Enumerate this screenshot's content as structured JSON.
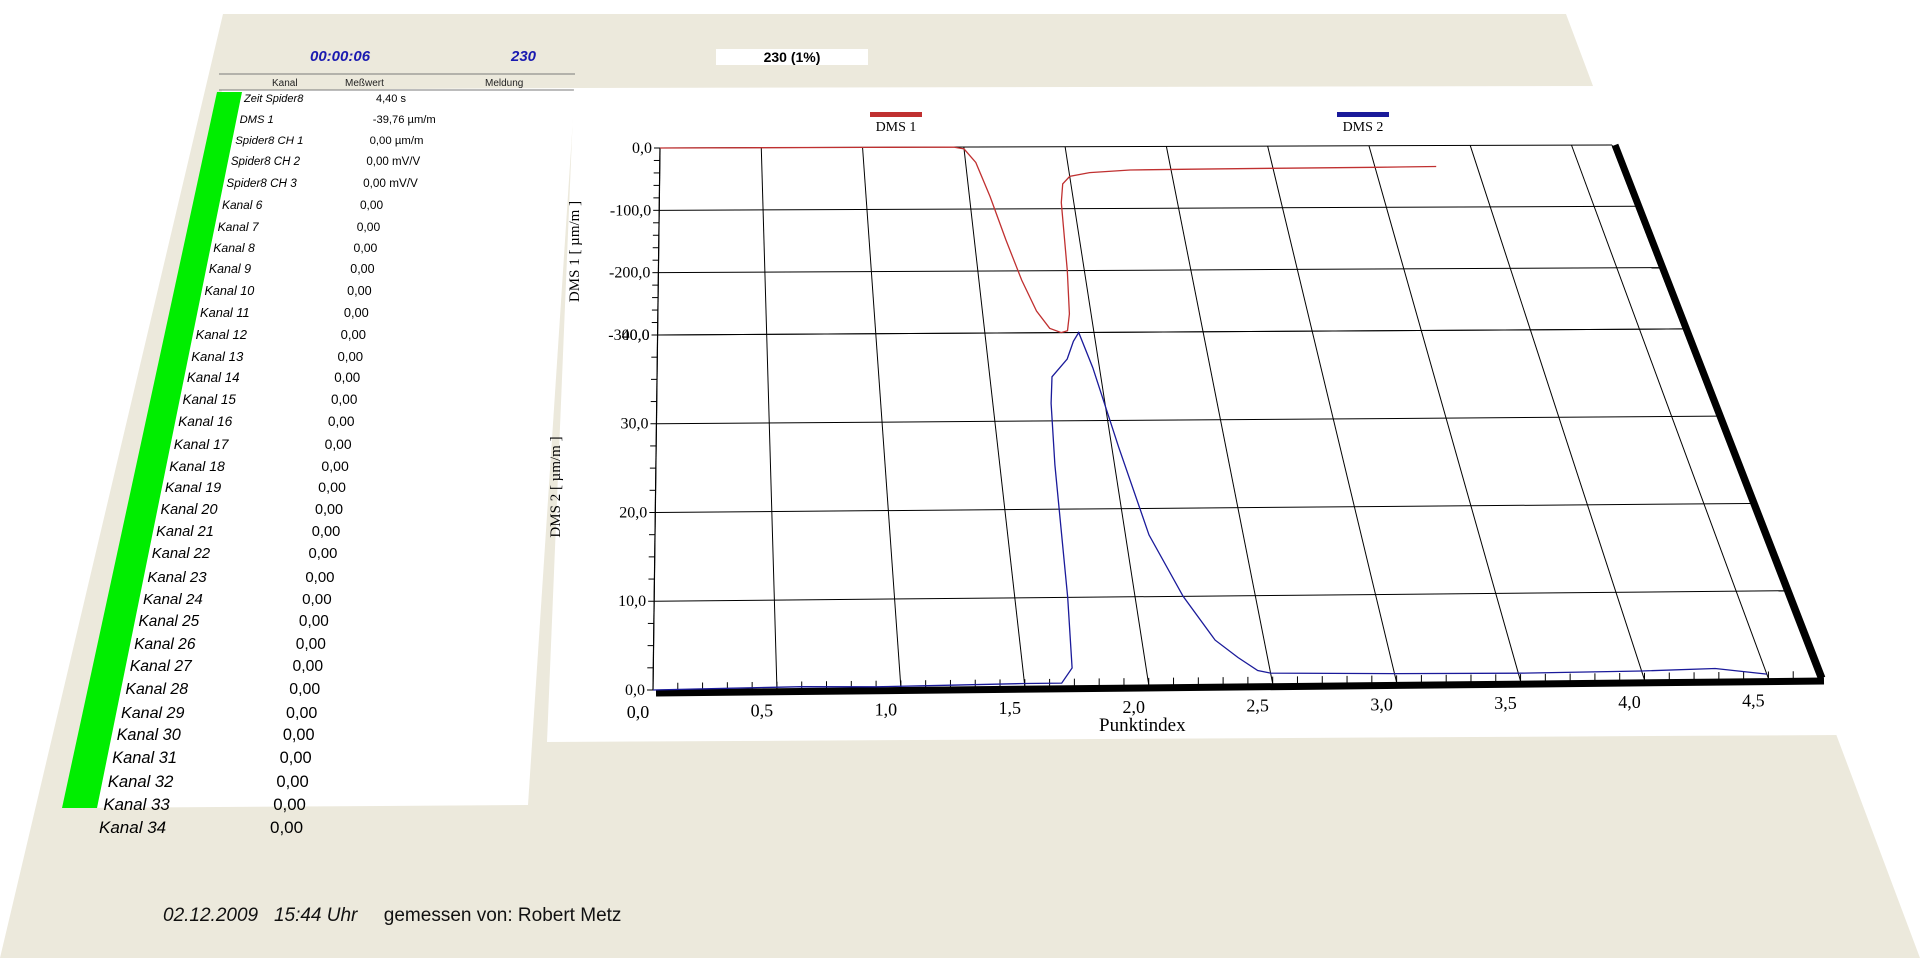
{
  "header": {
    "elapsed_time": "00:00:06",
    "count": "230",
    "progress": "230 (1%)"
  },
  "table": {
    "columns": [
      "Kanal",
      "Meßwert",
      "Meldung"
    ],
    "rows": [
      {
        "kanal": "Zeit Spider8",
        "wert": "4,40 s"
      },
      {
        "kanal": "DMS 1",
        "wert": "-39,76 µm/m"
      },
      {
        "kanal": "Spider8 CH 1",
        "wert": "0,00 µm/m"
      },
      {
        "kanal": "Spider8 CH 2",
        "wert": "0,00 mV/V"
      },
      {
        "kanal": "Spider8 CH 3",
        "wert": "0,00 mV/V"
      },
      {
        "kanal": "Kanal 6",
        "wert": "0,00"
      },
      {
        "kanal": "Kanal 7",
        "wert": "0,00"
      },
      {
        "kanal": "Kanal 8",
        "wert": "0,00"
      },
      {
        "kanal": "Kanal 9",
        "wert": "0,00"
      },
      {
        "kanal": "Kanal 10",
        "wert": "0,00"
      },
      {
        "kanal": "Kanal 11",
        "wert": "0,00"
      },
      {
        "kanal": "Kanal 12",
        "wert": "0,00"
      },
      {
        "kanal": "Kanal 13",
        "wert": "0,00"
      },
      {
        "kanal": "Kanal 14",
        "wert": "0,00"
      },
      {
        "kanal": "Kanal 15",
        "wert": "0,00"
      },
      {
        "kanal": "Kanal 16",
        "wert": "0,00"
      },
      {
        "kanal": "Kanal 17",
        "wert": "0,00"
      },
      {
        "kanal": "Kanal 18",
        "wert": "0,00"
      },
      {
        "kanal": "Kanal 19",
        "wert": "0,00"
      },
      {
        "kanal": "Kanal 20",
        "wert": "0,00"
      },
      {
        "kanal": "Kanal 21",
        "wert": "0,00"
      },
      {
        "kanal": "Kanal 22",
        "wert": "0,00"
      },
      {
        "kanal": "Kanal 23",
        "wert": "0,00"
      },
      {
        "kanal": "Kanal 24",
        "wert": "0,00"
      },
      {
        "kanal": "Kanal 25",
        "wert": "0,00"
      },
      {
        "kanal": "Kanal 26",
        "wert": "0,00"
      },
      {
        "kanal": "Kanal 27",
        "wert": "0,00"
      },
      {
        "kanal": "Kanal 28",
        "wert": "0,00"
      },
      {
        "kanal": "Kanal 29",
        "wert": "0,00"
      },
      {
        "kanal": "Kanal 30",
        "wert": "0,00"
      },
      {
        "kanal": "Kanal 31",
        "wert": "0,00"
      },
      {
        "kanal": "Kanal 32",
        "wert": "0,00"
      },
      {
        "kanal": "Kanal 33",
        "wert": "0,00"
      },
      {
        "kanal": "Kanal 34",
        "wert": "0,00"
      }
    ]
  },
  "colors": {
    "panel_bg": "#ece9dc",
    "status_bar": "#00ee00",
    "header_text": "#1a1ab0",
    "dms1_line": "#c03030",
    "dms2_line": "#1a1a9a"
  },
  "chart_data": {
    "type": "line",
    "xlabel": "Punktindex",
    "x_ticks": [
      "0,0",
      "0,5",
      "1,0",
      "1,5",
      "2,0",
      "2,5",
      "3,0",
      "3,5",
      "4,0",
      "4,5"
    ],
    "xlim": [
      0,
      4.7
    ],
    "grid": true,
    "legend_position": "top",
    "panels": [
      {
        "ylabel": "DMS 1 [ µm/m ]",
        "ylim": [
          -300,
          0
        ],
        "y_ticks": [
          "0,0",
          "-100,0",
          "-200,0",
          "-300,0"
        ],
        "series": [
          {
            "name": "DMS 1",
            "x": [
              0,
              0.5,
              1.0,
              1.45,
              1.5,
              1.55,
              1.6,
              1.65,
              1.7,
              1.75,
              1.8,
              1.85,
              1.88,
              1.9,
              1.92,
              1.94,
              1.96,
              2.0,
              2.1,
              2.3,
              2.6,
              3.0,
              3.5,
              3.8
            ],
            "y": [
              0,
              0,
              0,
              0,
              -3,
              -25,
              -80,
              -150,
              -215,
              -265,
              -293,
              -300,
              -297,
              -270,
              -200,
              -90,
              -60,
              -48,
              -42,
              -38,
              -37,
              -36,
              -35,
              -34
            ]
          }
        ]
      },
      {
        "ylabel": "DMS 2 [ µm/m ]",
        "ylim": [
          0,
          40
        ],
        "y_ticks": [
          "0,0",
          "10,0",
          "20,0",
          "30,0",
          "40,0"
        ],
        "series": [
          {
            "name": "DMS 2",
            "x": [
              0,
              0.3,
              0.6,
              0.9,
              1.2,
              1.5,
              1.65,
              1.7,
              1.72,
              1.74,
              1.76,
              1.78,
              1.82,
              1.86,
              1.9,
              1.93,
              1.97,
              2.03,
              2.1,
              2.2,
              2.3,
              2.38,
              2.45,
              2.5,
              3.0,
              3.5,
              4.0,
              4.3,
              4.5
            ],
            "y": [
              0,
              0.1,
              0.2,
              0.1,
              0.2,
              0.3,
              0.3,
              2,
              10,
              25,
              32,
              35,
              36,
              37,
              39,
              40,
              36,
              27,
              17,
              10,
              5,
              3,
              1.5,
              1.2,
              1.0,
              0.9,
              1.0,
              1.2,
              0.5
            ]
          }
        ]
      }
    ]
  },
  "footer": {
    "date": "02.12.2009",
    "time": "15:44 Uhr",
    "measured_by": "gemessen von: Robert Metz"
  }
}
